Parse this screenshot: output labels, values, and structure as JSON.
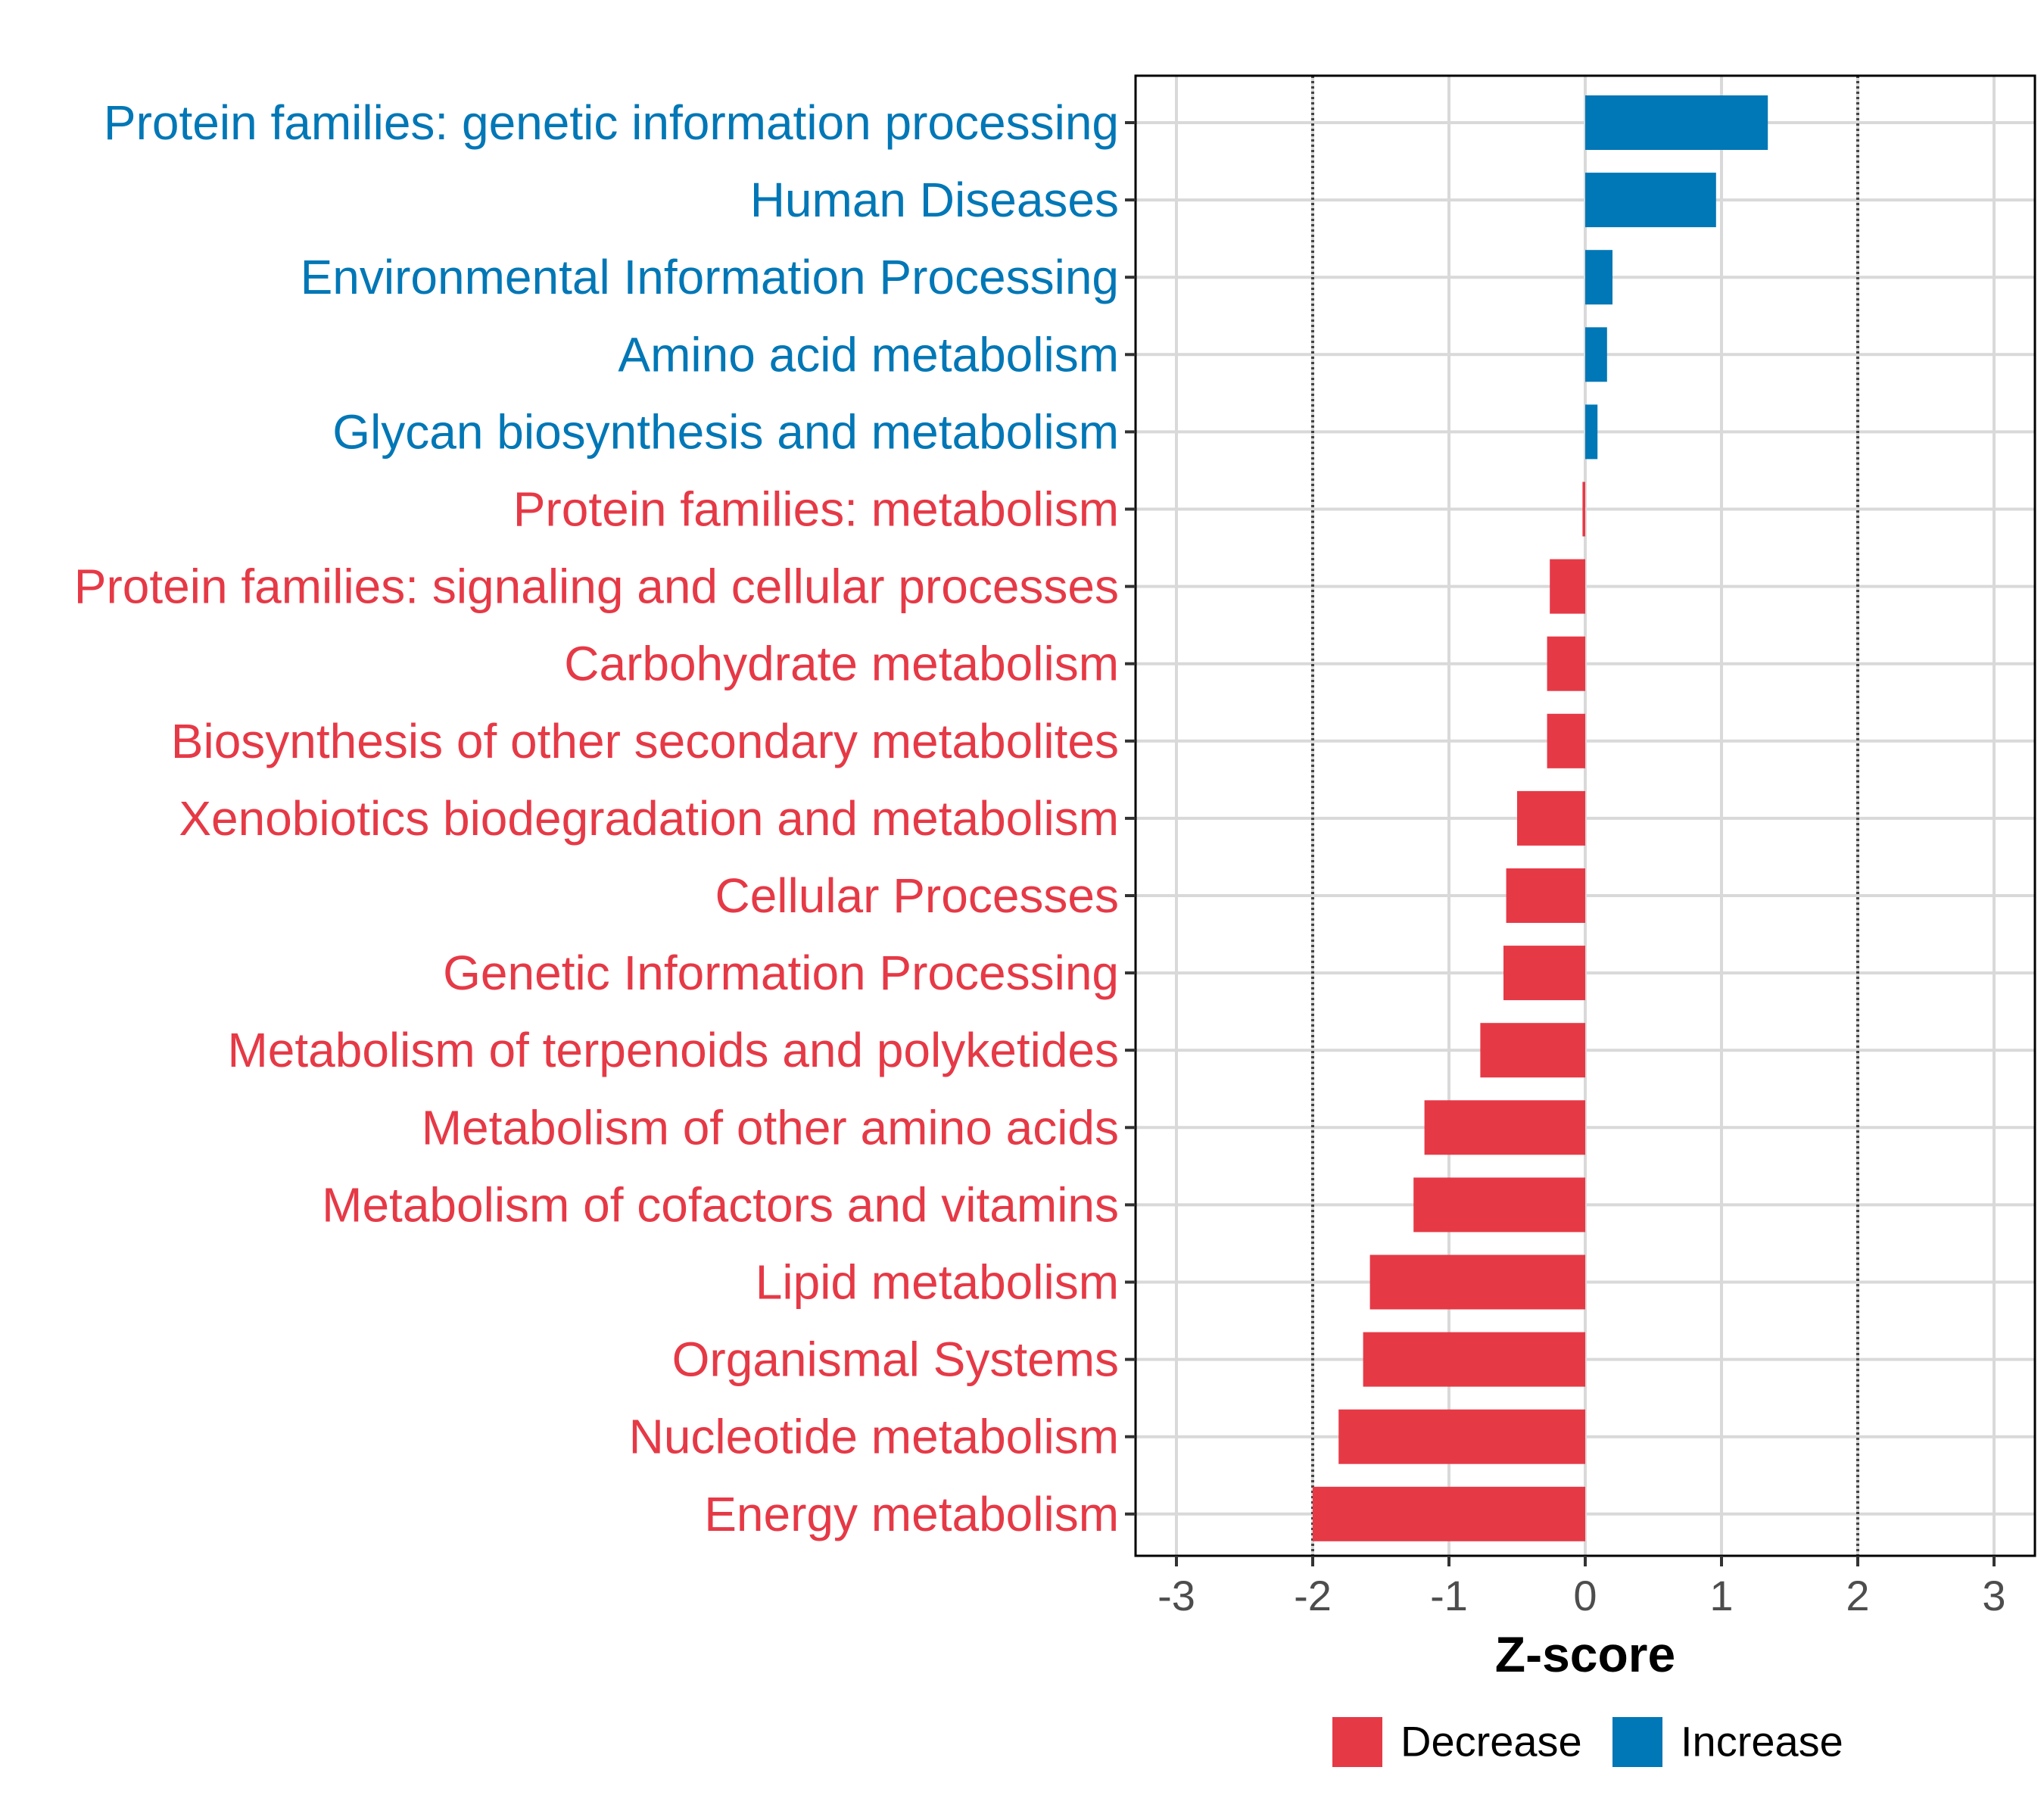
{
  "chart_data": {
    "type": "bar",
    "orientation": "horizontal",
    "title": "",
    "xlabel": "Z-score",
    "ylabel": "",
    "xlim": [
      -3.3,
      3.3
    ],
    "xticks": [
      -3,
      -2,
      -1,
      0,
      1,
      2,
      3
    ],
    "xtick_labels": [
      "-3",
      "-2",
      "-1",
      "0",
      "1",
      "2",
      "3"
    ],
    "reference_lines": [
      -2,
      2
    ],
    "grid": true,
    "categories": [
      "Protein families: genetic information processing",
      "Human Diseases",
      "Environmental Information Processing",
      "Amino acid metabolism",
      "Glycan biosynthesis and metabolism",
      "Protein families: metabolism",
      "Protein families: signaling and cellular processes",
      "Carbohydrate metabolism",
      "Biosynthesis of other secondary metabolites",
      "Xenobiotics biodegradation and metabolism",
      "Cellular Processes",
      "Genetic Information Processing",
      "Metabolism of terpenoids and polyketides",
      "Metabolism of other amino acids",
      "Metabolism of cofactors and vitamins",
      "Lipid metabolism",
      "Organismal Systems",
      "Nucleotide metabolism",
      "Energy metabolism"
    ],
    "values": [
      1.34,
      0.96,
      0.2,
      0.16,
      0.09,
      -0.02,
      -0.26,
      -0.28,
      -0.28,
      -0.5,
      -0.58,
      -0.6,
      -0.77,
      -1.18,
      -1.26,
      -1.58,
      -1.63,
      -1.81,
      -2.0
    ],
    "legend": {
      "position": "bottom",
      "entries": [
        {
          "name": "Decrease",
          "color": "#E63946"
        },
        {
          "name": "Increase",
          "color": "#0077B6"
        }
      ]
    },
    "colors": {
      "decrease": "#E63946",
      "increase": "#0077B6",
      "grid": "#d9d9d9",
      "reference_line": "#444444",
      "panel_border": "#000000"
    }
  }
}
